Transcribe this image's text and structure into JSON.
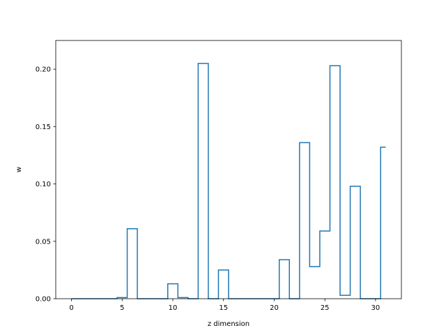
{
  "chart_data": {
    "type": "line",
    "drawstyle": "steps-mid",
    "title": "",
    "xlabel": "z dimension",
    "ylabel": "w",
    "xlim": [
      -1.55,
      32.55
    ],
    "ylim": [
      0,
      0.225
    ],
    "xticks": [
      0,
      5,
      10,
      15,
      20,
      25,
      30
    ],
    "xtick_labels": [
      "0",
      "5",
      "10",
      "15",
      "20",
      "25",
      "30"
    ],
    "yticks": [
      0,
      0.05,
      0.1,
      0.15,
      0.2
    ],
    "ytick_labels": [
      "0.00",
      "0.05",
      "0.10",
      "0.15",
      "0.20"
    ],
    "grid": false,
    "series": [
      {
        "color": "#1f77b4",
        "x": [
          0,
          1,
          2,
          3,
          4,
          5,
          6,
          7,
          8,
          9,
          10,
          11,
          12,
          13,
          14,
          15,
          16,
          17,
          18,
          19,
          20,
          21,
          22,
          23,
          24,
          25,
          26,
          27,
          28,
          29,
          30,
          31
        ],
        "y": [
          0,
          0,
          0,
          0,
          0,
          0.001,
          0.061,
          0,
          0,
          0,
          0.013,
          0.001,
          0,
          0.205,
          0,
          0.025,
          0,
          0,
          0,
          0,
          0,
          0.034,
          0,
          0.136,
          0.028,
          0.059,
          0.203,
          0.003,
          0.098,
          0,
          0,
          0.132
        ]
      }
    ]
  }
}
